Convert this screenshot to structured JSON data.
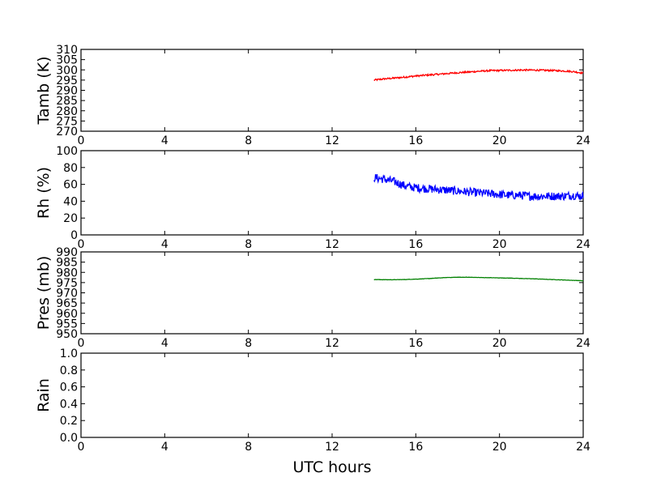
{
  "chart_data": [
    {
      "type": "line",
      "ylabel": "Tamb (K)",
      "ylim": [
        270,
        310
      ],
      "yticks": [
        "270",
        "275",
        "280",
        "285",
        "290",
        "295",
        "300",
        "305",
        "310"
      ],
      "xlim": [
        0,
        24
      ],
      "xticks": [
        "0",
        "4",
        "8",
        "12",
        "16",
        "20",
        "24"
      ],
      "series": [
        {
          "color": "#ff0000",
          "x": [
            14.0,
            14.5,
            15.0,
            15.5,
            16.0,
            16.5,
            17.0,
            17.5,
            18.0,
            18.5,
            19.0,
            19.5,
            20.0,
            20.5,
            21.0,
            21.5,
            22.0,
            22.5,
            23.0,
            23.5,
            24.0
          ],
          "y": [
            295.0,
            295.6,
            296.0,
            296.5,
            297.0,
            297.4,
            297.8,
            298.2,
            298.6,
            298.9,
            299.3,
            299.6,
            299.7,
            299.8,
            299.9,
            299.9,
            299.8,
            299.7,
            299.5,
            299.2,
            298.4
          ],
          "noise": 0.4
        }
      ]
    },
    {
      "type": "line",
      "ylabel": "Rh (%)",
      "ylim": [
        0,
        100
      ],
      "yticks": [
        "0",
        "20",
        "40",
        "60",
        "80",
        "100"
      ],
      "xlim": [
        0,
        24
      ],
      "xticks": [
        "0",
        "4",
        "8",
        "12",
        "16",
        "20",
        "24"
      ],
      "series": [
        {
          "color": "#0000ff",
          "x": [
            14.0,
            14.5,
            15.0,
            15.5,
            16.0,
            16.5,
            17.0,
            17.5,
            18.0,
            18.5,
            19.0,
            19.5,
            20.0,
            20.5,
            21.0,
            21.5,
            22.0,
            22.5,
            23.0,
            23.5,
            24.0
          ],
          "y": [
            68,
            66,
            63,
            58,
            56,
            55,
            54,
            53,
            52,
            51,
            50,
            49,
            48,
            47,
            47,
            46,
            46,
            46,
            46,
            47,
            46
          ],
          "noise": 5
        }
      ]
    },
    {
      "type": "line",
      "ylabel": "Pres (mb)",
      "ylim": [
        950,
        990
      ],
      "yticks": [
        "950",
        "955",
        "960",
        "965",
        "970",
        "975",
        "980",
        "985",
        "990"
      ],
      "xlim": [
        0,
        24
      ],
      "xticks": [
        "0",
        "4",
        "8",
        "12",
        "16",
        "20",
        "24"
      ],
      "series": [
        {
          "color": "#008000",
          "x": [
            14.0,
            14.5,
            15.0,
            15.5,
            16.0,
            16.5,
            17.0,
            17.5,
            18.0,
            18.5,
            19.0,
            19.5,
            20.0,
            20.5,
            21.0,
            21.5,
            22.0,
            22.5,
            23.0,
            23.5,
            24.0
          ],
          "y": [
            976.5,
            976.4,
            976.4,
            976.5,
            976.7,
            976.9,
            977.2,
            977.5,
            977.6,
            977.6,
            977.5,
            977.4,
            977.3,
            977.2,
            977.0,
            976.9,
            976.7,
            976.5,
            976.3,
            976.1,
            975.9
          ],
          "noise": 0.08
        }
      ]
    },
    {
      "type": "line",
      "ylabel": "Rain",
      "ylim": [
        0,
        1
      ],
      "yticks": [
        "0.0",
        "0.2",
        "0.4",
        "0.6",
        "0.8",
        "1.0"
      ],
      "xlim": [
        0,
        24
      ],
      "xticks": [
        "0",
        "4",
        "8",
        "12",
        "16",
        "20",
        "24"
      ],
      "xlabel": "UTC hours",
      "series": []
    }
  ]
}
